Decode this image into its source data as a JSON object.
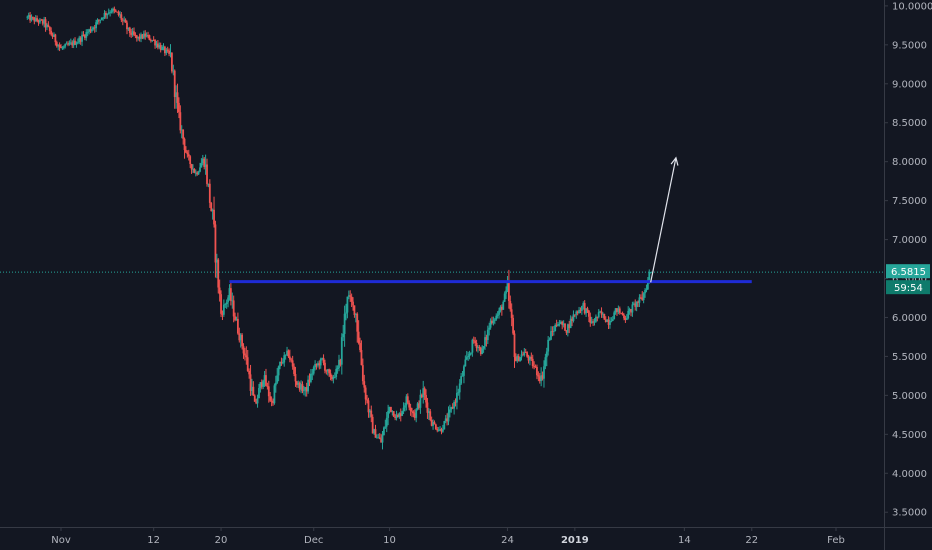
{
  "chart_data": {
    "type": "candlestick",
    "title": "",
    "xlabel": "",
    "ylabel": "",
    "ylim": [
      3.4,
      10.05
    ],
    "grid": false,
    "colors": {
      "background": "#131722",
      "up": "#26a69a",
      "down": "#ef5350",
      "resistance": "#1e2bd6",
      "arrow": "#e0e3eb",
      "current_price_line": "#26a69a",
      "axis_text": "#b2b5be"
    },
    "y_ticks": [
      "10.0000",
      "9.5000",
      "9.0000",
      "8.5000",
      "8.0000",
      "7.5000",
      "7.0000",
      "6.5000",
      "6.0000",
      "5.5000",
      "5.0000",
      "4.5000",
      "4.0000",
      "3.5000"
    ],
    "x_ticks": [
      {
        "label": "Nov",
        "date": "2018-11-01",
        "bold": false
      },
      {
        "label": "12",
        "date": "2018-11-12",
        "bold": false
      },
      {
        "label": "20",
        "date": "2018-11-20",
        "bold": false
      },
      {
        "label": "Dec",
        "date": "2018-12-01",
        "bold": false
      },
      {
        "label": "10",
        "date": "2018-12-10",
        "bold": false
      },
      {
        "label": "24",
        "date": "2018-12-24",
        "bold": false
      },
      {
        "label": "2019",
        "date": "2019-01-01",
        "bold": true
      },
      {
        "label": "14",
        "date": "2019-01-14",
        "bold": false
      },
      {
        "label": "22",
        "date": "2019-01-22",
        "bold": false
      },
      {
        "label": "Feb",
        "date": "2019-02-01",
        "bold": false
      }
    ],
    "price_path": [
      [
        "2018-10-28",
        9.85
      ],
      [
        "2018-10-30",
        9.78
      ],
      [
        "2018-11-01",
        9.45
      ],
      [
        "2018-11-03",
        9.55
      ],
      [
        "2018-11-05",
        9.75
      ],
      [
        "2018-11-06",
        9.88
      ],
      [
        "2018-11-07",
        9.95
      ],
      [
        "2018-11-08",
        9.87
      ],
      [
        "2018-11-09",
        9.68
      ],
      [
        "2018-11-10",
        9.58
      ],
      [
        "2018-11-11",
        9.62
      ],
      [
        "2018-11-12",
        9.55
      ],
      [
        "2018-11-13",
        9.45
      ],
      [
        "2018-11-14",
        9.35
      ],
      [
        "2018-11-15",
        8.55
      ],
      [
        "2018-11-16",
        8.05
      ],
      [
        "2018-11-17",
        7.85
      ],
      [
        "2018-11-18",
        8.05
      ],
      [
        "2018-11-19",
        7.25
      ],
      [
        "2018-11-20",
        6.05
      ],
      [
        "2018-11-21",
        6.3
      ],
      [
        "2018-11-22",
        5.85
      ],
      [
        "2018-11-23",
        5.45
      ],
      [
        "2018-11-24",
        4.85
      ],
      [
        "2018-11-25",
        5.25
      ],
      [
        "2018-11-26",
        4.9
      ],
      [
        "2018-11-27",
        5.4
      ],
      [
        "2018-11-28",
        5.55
      ],
      [
        "2018-11-29",
        5.15
      ],
      [
        "2018-11-30",
        5.05
      ],
      [
        "2018-12-01",
        5.35
      ],
      [
        "2018-12-02",
        5.45
      ],
      [
        "2018-12-03",
        5.2
      ],
      [
        "2018-12-04",
        5.35
      ],
      [
        "2018-12-05",
        6.3
      ],
      [
        "2018-12-06",
        6.05
      ],
      [
        "2018-12-07",
        5.1
      ],
      [
        "2018-12-08",
        4.55
      ],
      [
        "2018-12-09",
        4.4
      ],
      [
        "2018-12-10",
        4.85
      ],
      [
        "2018-12-11",
        4.7
      ],
      [
        "2018-12-12",
        4.95
      ],
      [
        "2018-12-13",
        4.75
      ],
      [
        "2018-12-14",
        5.05
      ],
      [
        "2018-12-15",
        4.65
      ],
      [
        "2018-12-16",
        4.55
      ],
      [
        "2018-12-17",
        4.72
      ],
      [
        "2018-12-18",
        5.0
      ],
      [
        "2018-12-19",
        5.4
      ],
      [
        "2018-12-20",
        5.7
      ],
      [
        "2018-12-21",
        5.55
      ],
      [
        "2018-12-22",
        5.95
      ],
      [
        "2018-12-23",
        6.05
      ],
      [
        "2018-12-24",
        6.35
      ],
      [
        "2018-12-25",
        5.45
      ],
      [
        "2018-12-26",
        5.55
      ],
      [
        "2018-12-27",
        5.4
      ],
      [
        "2018-12-28",
        5.2
      ],
      [
        "2018-12-29",
        5.75
      ],
      [
        "2018-12-30",
        5.95
      ],
      [
        "2018-12-31",
        5.85
      ],
      [
        "2019-01-01",
        6.05
      ],
      [
        "2019-01-02",
        6.15
      ],
      [
        "2019-01-03",
        5.92
      ],
      [
        "2019-01-04",
        6.05
      ],
      [
        "2019-01-05",
        5.95
      ],
      [
        "2019-01-06",
        6.1
      ],
      [
        "2019-01-07",
        6.0
      ],
      [
        "2019-01-08",
        6.15
      ],
      [
        "2019-01-09",
        6.25
      ],
      [
        "2019-01-10",
        6.58
      ]
    ],
    "resistance_level": 6.46,
    "resistance_range": [
      "2018-11-21",
      "2019-01-22"
    ],
    "arrow": {
      "from": [
        "2019-01-10",
        6.45
      ],
      "to": [
        "2019-01-13",
        8.05
      ]
    },
    "current_price": 6.5815,
    "current_price_label": "6.5815",
    "countdown_label": "59:54"
  }
}
